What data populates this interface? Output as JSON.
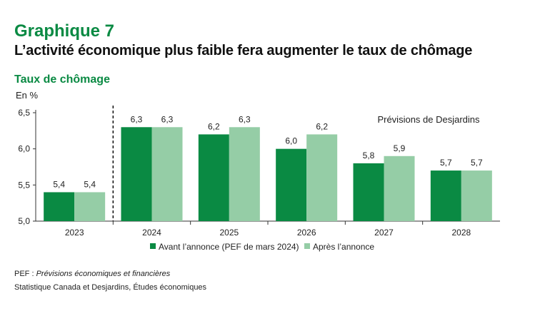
{
  "header": {
    "graph_label": "Graphique 7",
    "title": "L’activité économique plus faible fera augmenter le taux de chômage"
  },
  "chart_data": {
    "type": "bar",
    "title": "Taux de chômage",
    "ylabel": "En %",
    "categories": [
      "2023",
      "2024",
      "2025",
      "2026",
      "2027",
      "2028"
    ],
    "series": [
      {
        "name": "Avant l’annonce (PEF de mars 2024)",
        "color": "#0a8a43",
        "values": [
          5.4,
          6.3,
          6.2,
          6.0,
          5.8,
          5.7
        ]
      },
      {
        "name": "Après l’annonce",
        "color": "#95cda6",
        "values": [
          5.4,
          6.3,
          6.3,
          6.2,
          5.9,
          5.7
        ]
      }
    ],
    "data_labels": [
      [
        "5,4",
        "6,3",
        "6,2",
        "6,0",
        "5,8",
        "5,7"
      ],
      [
        "5,4",
        "6,3",
        "6,3",
        "6,2",
        "5,9",
        "5,7"
      ]
    ],
    "ylim": [
      5.0,
      6.5
    ],
    "yticks": [
      5.0,
      5.5,
      6.0,
      6.5
    ],
    "ytick_labels": [
      "5,0",
      "5,5",
      "6,0",
      "6,5"
    ],
    "annotation": "Prévisions de Desjardins",
    "forecast_divider_after": "2023"
  },
  "footer": {
    "note_prefix": "PEF : ",
    "note_text": "Prévisions économiques et financières",
    "source": "Statistique Canada et Desjardins, Études économiques"
  }
}
